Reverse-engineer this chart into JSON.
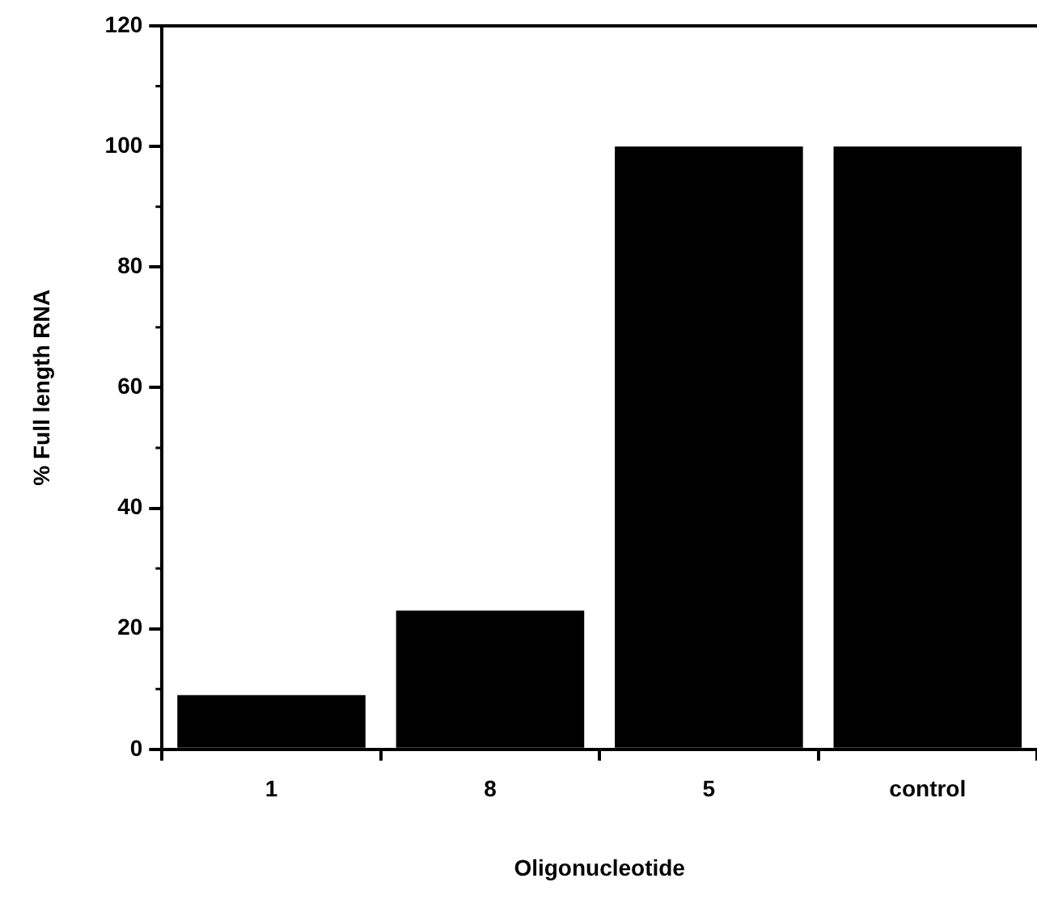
{
  "chart_data": {
    "type": "bar",
    "xlabel": "Oligonucleotide",
    "ylabel": "% Full length RNA",
    "categories": [
      "1",
      "8",
      "5",
      "control"
    ],
    "values": [
      9,
      23,
      100,
      100
    ],
    "color": "#000000",
    "ylim": [
      0,
      120
    ],
    "yticks": [
      0,
      20,
      40,
      60,
      80,
      100,
      120
    ],
    "grid": false,
    "legend": false
  }
}
